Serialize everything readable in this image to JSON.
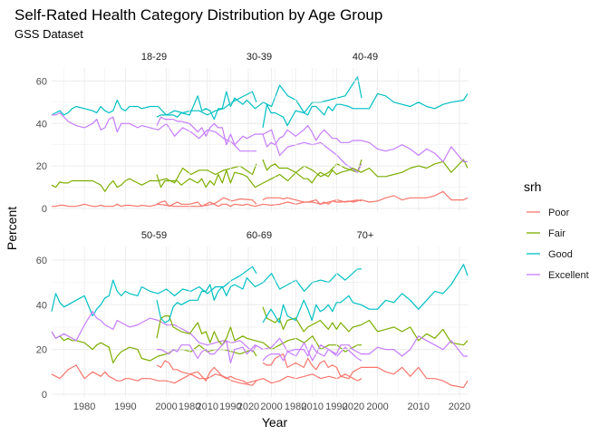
{
  "chart_data": {
    "type": "line",
    "title": "Self-Rated Health Category Distribution by Age Group",
    "subtitle": "GSS Dataset",
    "xlabel": "Year",
    "ylabel": "Percent",
    "xlim": [
      1972,
      2022
    ],
    "ylim": [
      0,
      64
    ],
    "x_ticks": [
      1980,
      1990,
      2000,
      2010,
      2020
    ],
    "y_ticks": [
      0,
      20,
      40,
      60
    ],
    "grid": true,
    "legend": {
      "title": "srh",
      "position": "right"
    },
    "series_colors": {
      "Poor": "#F8766D",
      "Fair": "#7CAE00",
      "Good": "#00BFC4",
      "Excellent": "#C77CFF"
    },
    "years": [
      1972,
      1973,
      1974,
      1975,
      1976,
      1977,
      1978,
      1980,
      1982,
      1983,
      1984,
      1985,
      1986,
      1987,
      1988,
      1989,
      1990,
      1991,
      1993,
      1994,
      1996,
      1998,
      2000,
      2002,
      2004,
      2006,
      2008,
      2010,
      2012,
      2014,
      2016,
      2018,
      2021,
      2022
    ],
    "panels": [
      {
        "label": "18-29",
        "series": [
          {
            "name": "Poor",
            "values": [
              1,
              1,
              1.5,
              1.5,
              1,
              1,
              1,
              2,
              1,
              1,
              1.5,
              1,
              1,
              1,
              2,
              1,
              1.5,
              1.5,
              1,
              1.5,
              1,
              2,
              1.5,
              1,
              1,
              1,
              1,
              1.5,
              2.5,
              5,
              3.5,
              4.5,
              4,
              2
            ]
          },
          {
            "name": "Fair",
            "values": [
              11,
              10,
              12.5,
              12,
              12,
              13,
              13,
              13,
              13,
              12,
              11,
              8,
              11,
              13,
              10,
              11,
              13,
              14,
              12,
              11,
              13,
              13,
              14,
              12,
              19,
              16,
              18,
              18,
              16,
              18,
              19,
              20,
              16,
              21
            ]
          },
          {
            "name": "Good",
            "values": [
              44,
              45,
              46,
              44,
              45,
              47,
              48,
              47,
              46,
              45,
              48,
              46,
              45,
              46,
              51,
              47,
              46,
              48,
              48,
              47,
              48,
              48,
              44,
              46,
              45,
              46,
              46,
              44,
              46,
              47,
              50,
              52,
              55,
              50
            ]
          },
          {
            "name": "Excellent",
            "values": [
              44,
              44,
              45,
              43,
              41,
              40,
              39,
              38,
              40,
              42,
              37,
              38,
              42,
              43,
              36,
              40,
              40,
              40,
              38,
              39,
              38,
              37,
              40,
              34,
              38,
              36,
              33,
              37,
              36,
              33,
              31,
              27,
              27,
              27
            ]
          }
        ]
      },
      {
        "label": "30-39",
        "series": [
          {
            "name": "Poor",
            "values": [
              2,
              3,
              3.5,
              1,
              2,
              3,
              2,
              2,
              3,
              1,
              2,
              3,
              2,
              1,
              2,
              2,
              1,
              2,
              1.5,
              2,
              1,
              2,
              1.5,
              2,
              3,
              2,
              3,
              3,
              2,
              3,
              4,
              3,
              4,
              3.5
            ]
          },
          {
            "name": "Fair",
            "values": [
              16,
              10,
              13,
              13,
              13,
              13,
              11,
              14,
              12,
              14,
              10,
              13,
              11,
              16,
              12,
              18,
              12,
              17,
              16,
              15,
              10,
              12,
              14,
              16,
              13,
              17,
              20,
              18,
              15,
              17,
              21,
              19,
              17,
              23
            ]
          },
          {
            "name": "Good",
            "values": [
              43,
              44,
              44,
              44,
              44,
              43,
              45,
              44,
              53,
              46,
              47,
              46,
              42,
              47,
              47,
              55,
              48,
              52,
              49,
              51,
              47,
              50,
              48,
              58,
              53,
              51,
              45,
              50,
              50,
              51,
              52,
              53,
              62,
              52
            ]
          },
          {
            "name": "Excellent",
            "values": [
              39,
              43,
              42,
              42,
              42,
              41,
              41,
              40,
              36,
              38,
              34,
              38,
              40,
              38,
              38,
              30,
              35,
              30,
              34,
              33,
              35,
              35,
              37,
              25,
              29,
              30,
              31,
              30,
              31,
              28,
              25,
              21,
              17,
              21
            ]
          }
        ]
      },
      {
        "label": "40-49",
        "series": [
          {
            "name": "Poor",
            "values": [
              4,
              5,
              5,
              5,
              5,
              4.5,
              5,
              4,
              3,
              3,
              3.5,
              4,
              2,
              3,
              2,
              3.5,
              3,
              3,
              3.5,
              3,
              4,
              3,
              3.5,
              5,
              6,
              4,
              5,
              5,
              5,
              6,
              8,
              4,
              4,
              5
            ]
          },
          {
            "name": "Fair",
            "values": [
              23,
              18,
              20,
              21,
              19,
              19,
              19,
              17,
              14,
              14,
              12,
              15,
              17,
              16,
              15,
              18,
              16,
              17,
              18,
              19,
              17,
              19,
              15,
              15,
              16,
              17,
              19,
              20,
              19,
              21,
              22,
              17,
              23,
              19
            ]
          },
          {
            "name": "Good",
            "values": [
              38,
              49,
              45,
              45,
              44,
              43,
              39,
              46,
              45,
              44,
              48,
              48,
              46,
              44,
              48,
              46,
              49,
              49,
              48,
              47,
              47,
              47,
              54,
              53,
              50,
              49,
              48,
              50,
              48,
              47,
              49,
              50,
              51,
              54
            ]
          },
          {
            "name": "Excellent",
            "values": [
              35,
              29,
              31,
              30,
              33,
              34,
              37,
              34,
              37,
              39,
              36,
              32,
              35,
              37,
              35,
              33,
              33,
              31,
              31,
              32,
              32,
              31,
              28,
              27,
              28,
              30,
              28,
              25,
              28,
              26,
              22,
              29,
              22,
              22
            ]
          }
        ]
      },
      {
        "label": "50-59",
        "series": [
          {
            "name": "Poor",
            "values": [
              9,
              8,
              7,
              9,
              11,
              12,
              13,
              7,
              10,
              9,
              8,
              10,
              8,
              7,
              6,
              6,
              7,
              7,
              6,
              7,
              7,
              6,
              6,
              5,
              7,
              9,
              7,
              7,
              9,
              8,
              6,
              5,
              4,
              6
            ]
          },
          {
            "name": "Fair",
            "values": [
              28,
              25,
              26,
              24,
              25,
              24,
              24,
              23,
              20,
              22,
              23,
              22,
              21,
              14,
              17,
              19,
              20,
              21,
              20,
              16,
              15,
              17,
              18,
              20,
              20,
              19,
              22,
              19,
              20,
              20,
              19,
              18,
              20,
              17
            ]
          },
          {
            "name": "Good",
            "values": [
              37,
              45,
              41,
              39,
              40,
              41,
              42,
              44,
              35,
              38,
              40,
              43,
              44,
              51,
              46,
              44,
              46,
              45,
              44,
              48,
              46,
              45,
              47,
              44,
              47,
              46,
              48,
              45,
              48,
              48,
              51,
              53,
              57,
              54
            ]
          },
          {
            "name": "Excellent",
            "values": [
              28,
              25,
              26,
              27,
              26,
              25,
              24,
              31,
              37,
              34,
              33,
              31,
              30,
              29,
              33,
              32,
              31,
              30,
              31,
              32,
              34,
              33,
              31,
              31,
              29,
              27,
              23,
              22,
              23,
              24,
              23,
              24,
              19,
              22
            ]
          }
        ]
      },
      {
        "label": "60-69",
        "series": [
          {
            "name": "Poor",
            "values": [
              13,
              12,
              15,
              14,
              11,
              11,
              10,
              9,
              10,
              8,
              6,
              10,
              12,
              10,
              8,
              7,
              8,
              7,
              6,
              5,
              6,
              7,
              5,
              6,
              8,
              7,
              8,
              9,
              7,
              8,
              7,
              9,
              6,
              7
            ]
          },
          {
            "name": "Fair",
            "values": [
              25,
              34,
              35,
              35,
              30,
              29,
              28,
              27,
              32,
              27,
              28,
              23,
              28,
              24,
              22,
              25,
              30,
              24,
              26,
              25,
              24,
              23,
              20,
              22,
              24,
              25,
              23,
              26,
              20,
              22,
              22,
              19,
              22,
              22
            ]
          },
          {
            "name": "Good",
            "values": [
              42,
              34,
              32,
              33,
              39,
              41,
              40,
              42,
              42,
              46,
              46,
              49,
              42,
              46,
              48,
              44,
              48,
              49,
              47,
              52,
              48,
              50,
              54,
              47,
              49,
              51,
              46,
              50,
              51,
              50,
              54,
              51,
              56,
              56
            ]
          },
          {
            "name": "Excellent",
            "values": [
              20,
              20,
              19,
              18,
              20,
              19,
              22,
              22,
              16,
              19,
              20,
              18,
              18,
              20,
              22,
              24,
              14,
              20,
              21,
              18,
              22,
              20,
              21,
              25,
              19,
              17,
              23,
              15,
              22,
              20,
              17,
              21,
              16,
              15
            ]
          }
        ]
      },
      {
        "label": "70+",
        "series": [
          {
            "name": "Poor",
            "values": [
              14,
              13,
              13,
              16,
              17,
              18,
              12,
              14,
              12,
              16,
              13,
              11,
              14,
              15,
              12,
              13,
              12,
              8,
              7,
              10,
              12,
              12,
              12,
              10,
              9,
              12,
              8,
              12,
              7,
              7,
              6,
              4,
              3,
              6
            ]
          },
          {
            "name": "Fair",
            "values": [
              39,
              34,
              33,
              32,
              34,
              29,
              33,
              34,
              28,
              30,
              31,
              32,
              33,
              31,
              29,
              32,
              29,
              32,
              28,
              30,
              31,
              33,
              28,
              29,
              30,
              28,
              30,
              24,
              27,
              25,
              29,
              23,
              22,
              24
            ]
          },
          {
            "name": "Good",
            "values": [
              32,
              35,
              38,
              35,
              32,
              40,
              35,
              33,
              42,
              38,
              33,
              40,
              37,
              38,
              40,
              37,
              41,
              41,
              44,
              41,
              40,
              38,
              38,
              42,
              41,
              45,
              42,
              38,
              42,
              46,
              45,
              49,
              58,
              53
            ]
          },
          {
            "name": "Excellent",
            "values": [
              15,
              17,
              18,
              18,
              18,
              15,
              19,
              20,
              20,
              17,
              22,
              19,
              18,
              17,
              20,
              19,
              18,
              22,
              22,
              20,
              18,
              18,
              21,
              20,
              20,
              17,
              20,
              26,
              24,
              22,
              20,
              24,
              17,
              17
            ]
          }
        ]
      }
    ]
  }
}
